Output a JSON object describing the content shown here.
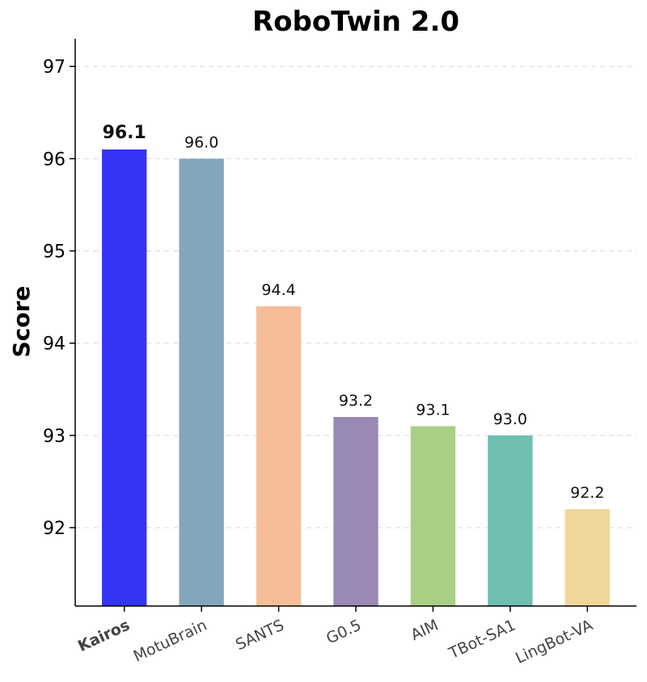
{
  "chart_data": {
    "type": "bar",
    "title": "RoboTwin 2.0",
    "xlabel": "",
    "ylabel": "Score",
    "ylim": [
      91.15,
      97.3
    ],
    "yticks": [
      92,
      93,
      94,
      95,
      96,
      97
    ],
    "grid": true,
    "grid_axis": "y",
    "legend": "none",
    "categories": [
      "Kairos",
      "MotuBrain",
      "SANTS",
      "G0.5",
      "AIM",
      "TBot-SA1",
      "LingBot-VA"
    ],
    "values": [
      96.1,
      96.0,
      94.4,
      93.2,
      93.1,
      93.0,
      92.2
    ],
    "value_labels": [
      "96.1",
      "96.0",
      "94.4",
      "93.2",
      "93.1",
      "93.0",
      "92.2"
    ],
    "colors": [
      "#3434f2",
      "#84a6bc",
      "#f6be98",
      "#9a88b6",
      "#a9cf85",
      "#6fbfb3",
      "#f0d698"
    ],
    "highlight_index": 0,
    "highlight_color": "#2b2bff"
  }
}
